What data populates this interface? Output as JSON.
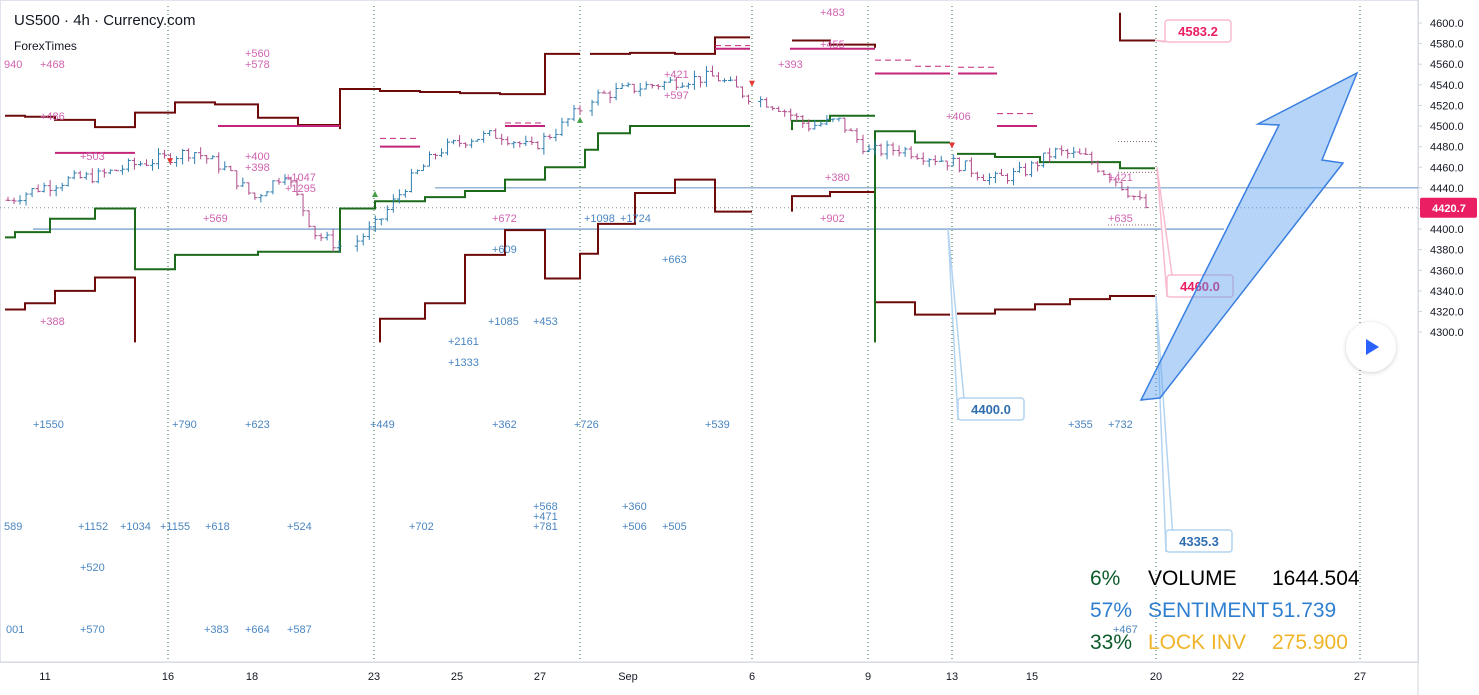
{
  "header": {
    "title": "US500 · 4h · Currency.com",
    "subtitle": "ForexTimes"
  },
  "price_scale": {
    "ticks": [
      "4600.0",
      "4580.0",
      "4560.0",
      "4540.0",
      "4520.0",
      "4500.0",
      "4480.0",
      "4460.0",
      "4440.0",
      "4420.0",
      "4400.0",
      "4380.0",
      "4360.0",
      "4340.0",
      "4320.0",
      "4300.0"
    ],
    "last_price": "4420.7",
    "last_price_color": "#e91e63"
  },
  "time_axis": {
    "ticks": [
      "11",
      "16",
      "18",
      "23",
      "25",
      "27",
      "Sep",
      "6",
      "9",
      "13",
      "15",
      "20",
      "22",
      "27"
    ]
  },
  "callouts": [
    {
      "label": "4583.2",
      "color": "#e91e63",
      "border": "#f8bbd0"
    },
    {
      "label": "4460.0",
      "color": "#e91e63",
      "border": "#f8bbd0"
    },
    {
      "label": "4400.0",
      "color": "#2f6fb0",
      "border": "#b3d4f0"
    },
    {
      "label": "4335.3",
      "color": "#2f6fb0",
      "border": "#b3d4f0"
    }
  ],
  "annotations": {
    "pink": [
      "940",
      "+468",
      "+486",
      "+503",
      "+560",
      "+578",
      "+400",
      "+398",
      "+1047",
      "+1295",
      "+569",
      "+388",
      "+672",
      "+421",
      "+597",
      "+483",
      "+455",
      "+393",
      "+380",
      "+406",
      "+421",
      "+635",
      "+902"
    ],
    "blue": [
      "+1550",
      "+790",
      "+623",
      "+449",
      "+362",
      "+726",
      "+539",
      "+355",
      "+732",
      "589",
      "+1152",
      "+1034",
      "+1155",
      "+618",
      "+524",
      "+702",
      "+568",
      "+471",
      "+781",
      "+360",
      "+506",
      "+505",
      "+520",
      "001",
      "+570",
      "+383",
      "+664",
      "+587",
      "+2161",
      "+1333",
      "+1085",
      "+453",
      "+609",
      "+1098",
      "+1724",
      "+663",
      "+467"
    ]
  },
  "legend": [
    {
      "pct": "6%",
      "label": "VOLUME",
      "value": "1644.504",
      "pct_color": "#0b5b2b",
      "label_color": "#000000",
      "value_color": "#000000"
    },
    {
      "pct": "57%",
      "label": "SENTIMENT",
      "value": "51.739",
      "pct_color": "#2f7fd0",
      "label_color": "#2f7fd0",
      "value_color": "#2f7fd0"
    },
    {
      "pct": "33%",
      "label": "LOCK INV",
      "value": "275.900",
      "pct_color": "#0b5b2b",
      "label_color": "#f0b429",
      "value_color": "#f0b429"
    }
  ],
  "colors": {
    "up_candle": "#2f7fb0",
    "down_candle": "#b04a88",
    "resistance": "#6d0b0b",
    "support": "#1b6b1b",
    "level_pink": "#c2257a",
    "level_blue": "#2f6fb0",
    "arrow": "#5b9ff0"
  },
  "chart_data": {
    "type": "candlestick",
    "symbol": "US500",
    "timeframe": "4h",
    "ylim": [
      4290,
      4610
    ],
    "last": 4420.7,
    "levels": [
      4583.2,
      4460.0,
      4400.0,
      4335.3
    ],
    "close_path": [
      [
        "11",
        4428
      ],
      [
        "12",
        4440
      ],
      [
        "13",
        4448
      ],
      [
        "14",
        4452
      ],
      [
        "15",
        4462
      ],
      [
        "16",
        4468
      ],
      [
        "17",
        4476
      ],
      [
        "17b",
        4460
      ],
      [
        "18",
        4430
      ],
      [
        "19",
        4455
      ],
      [
        "20",
        4395
      ],
      [
        "21",
        4380
      ],
      [
        "22",
        4405
      ],
      [
        "23",
        4445
      ],
      [
        "24",
        4476
      ],
      [
        "25",
        4488
      ],
      [
        "26",
        4492
      ],
      [
        "27",
        4478
      ],
      [
        "28",
        4500
      ],
      [
        "Sep",
        4528
      ],
      [
        "Sep2",
        4535
      ],
      [
        "Sep3",
        4540
      ],
      [
        "Sep4",
        4545
      ],
      [
        "6",
        4548
      ],
      [
        "7",
        4530
      ],
      [
        "8",
        4520
      ],
      [
        "9",
        4500
      ],
      [
        "10",
        4505
      ],
      [
        "11",
        4475
      ],
      [
        "12",
        4478
      ],
      [
        "13",
        4470
      ],
      [
        "14",
        4462
      ],
      [
        "15",
        4448
      ],
      [
        "16",
        4455
      ],
      [
        "17",
        4475
      ],
      [
        "18",
        4470
      ],
      [
        "19",
        4448
      ],
      [
        "20",
        4421
      ]
    ]
  }
}
